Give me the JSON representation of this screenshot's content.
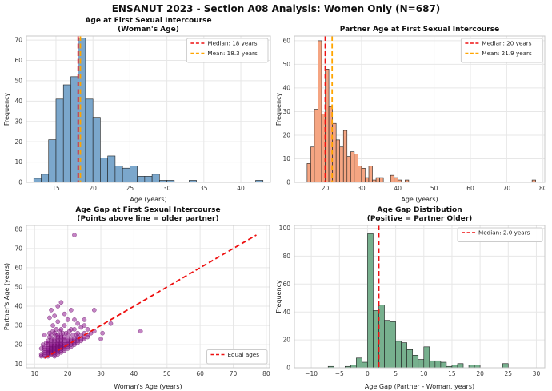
{
  "figure": {
    "title": "ENSANUT 2023 - Section A08 Analysis: Women Only (N=687)"
  },
  "colors": {
    "median_line": "#ee1111",
    "mean_line": "#ffa500",
    "hist_woman_fill": "#7ba7cc",
    "hist_partner_fill": "#f5a582",
    "hist_gap_fill": "#77b08e",
    "scatter_fill": "rgba(145,30,145,0.55)",
    "scatter_edge": "rgba(90,0,90,0.65)",
    "grid": "#e7e7e7",
    "spine": "#c8c8c8",
    "bar_edge": "#1f1f1f"
  },
  "chart_data": [
    {
      "id": "woman-age-histogram",
      "type": "bar",
      "title_lines": [
        "Age at First Sexual Intercourse",
        "(Woman's Age)"
      ],
      "xlabel": "Age (years)",
      "ylabel": "Frequency",
      "bar_color": "#7ba7cc",
      "bar_edge": "#1f1f1f",
      "bin_width": 1,
      "bins": [
        [
          12,
          2
        ],
        [
          13,
          4
        ],
        [
          14,
          21
        ],
        [
          15,
          41
        ],
        [
          16,
          48
        ],
        [
          17,
          52
        ],
        [
          18,
          71
        ],
        [
          19,
          41
        ],
        [
          20,
          32
        ],
        [
          21,
          12
        ],
        [
          22,
          13
        ],
        [
          23,
          8
        ],
        [
          24,
          7
        ],
        [
          25,
          8
        ],
        [
          26,
          3
        ],
        [
          27,
          3
        ],
        [
          28,
          4
        ],
        [
          29,
          1
        ],
        [
          30,
          1
        ],
        [
          33,
          1
        ],
        [
          42,
          1
        ]
      ],
      "xlim": [
        11,
        44
      ],
      "ylim": [
        0,
        72
      ],
      "xticks": [
        15,
        20,
        25,
        30,
        35,
        40
      ],
      "yticks": [
        0,
        10,
        20,
        30,
        40,
        50,
        60,
        70
      ],
      "grid": true,
      "vlines": [
        {
          "x": 18,
          "color": "#ee1111",
          "label": "Median: 18 years"
        },
        {
          "x": 18.3,
          "color": "#ffa500",
          "label": "Mean: 18.3 years"
        }
      ],
      "legend_pos": "top-right"
    },
    {
      "id": "partner-age-histogram",
      "type": "bar",
      "title_lines": [
        "Partner Age at First Sexual Intercourse"
      ],
      "xlabel": "Age (years)",
      "ylabel": "Frequency",
      "bar_color": "#f5a582",
      "bar_edge": "#1f1f1f",
      "bin_width": 1,
      "bins": [
        [
          15,
          8
        ],
        [
          16,
          15
        ],
        [
          17,
          31
        ],
        [
          18,
          60
        ],
        [
          19,
          29
        ],
        [
          20,
          48
        ],
        [
          21,
          32
        ],
        [
          22,
          25
        ],
        [
          23,
          18
        ],
        [
          24,
          15
        ],
        [
          25,
          22
        ],
        [
          26,
          11
        ],
        [
          27,
          13
        ],
        [
          28,
          12
        ],
        [
          29,
          7
        ],
        [
          30,
          6
        ],
        [
          31,
          2
        ],
        [
          32,
          7
        ],
        [
          33,
          1
        ],
        [
          34,
          2
        ],
        [
          35,
          2
        ],
        [
          38,
          3
        ],
        [
          39,
          2
        ],
        [
          40,
          1
        ],
        [
          42,
          1
        ],
        [
          77,
          1
        ]
      ],
      "xlim": [
        11.5,
        80.5
      ],
      "ylim": [
        0,
        62
      ],
      "xticks": [
        20,
        30,
        40,
        50,
        60,
        70,
        80
      ],
      "yticks": [
        0,
        10,
        20,
        30,
        40,
        50,
        60
      ],
      "grid": true,
      "vlines": [
        {
          "x": 20,
          "color": "#ee1111",
          "label": "Median: 20 years"
        },
        {
          "x": 21.9,
          "color": "#ffa500",
          "label": "Mean: 21.9 years"
        }
      ],
      "legend_pos": "top-right"
    },
    {
      "id": "age-gap-scatter",
      "type": "scatter",
      "title_lines": [
        "Age Gap at First Sexual Intercourse",
        "(Points above line = older partner)"
      ],
      "xlabel": "Woman's Age (years)",
      "ylabel": "Partner's Age (years)",
      "point_color": "rgba(145,30,145,0.55)",
      "point_edge": "rgba(90,0,90,0.65)",
      "xlim": [
        7.5,
        81
      ],
      "ylim": [
        8,
        82
      ],
      "xticks": [
        10,
        20,
        30,
        40,
        50,
        60,
        70,
        80
      ],
      "yticks": [
        10,
        20,
        30,
        40,
        50,
        60,
        70,
        80
      ],
      "grid": true,
      "ref_line": {
        "x1": 13,
        "y1": 13,
        "x2": 77,
        "y2": 77,
        "color": "#ee1111",
        "label": "Equal ages"
      },
      "legend_pos": "bottom-right",
      "points": [
        [
          12,
          14
        ],
        [
          12,
          15
        ],
        [
          12,
          18
        ],
        [
          12.5,
          20
        ],
        [
          13,
          14
        ],
        [
          13,
          15
        ],
        [
          13,
          16
        ],
        [
          13,
          17
        ],
        [
          13,
          18
        ],
        [
          13,
          19
        ],
        [
          13.5,
          21
        ],
        [
          13,
          25
        ],
        [
          14,
          14
        ],
        [
          14,
          15
        ],
        [
          14,
          15.5
        ],
        [
          14,
          16
        ],
        [
          14,
          16.5
        ],
        [
          14,
          17
        ],
        [
          14,
          17.5
        ],
        [
          14,
          18
        ],
        [
          14,
          19
        ],
        [
          14,
          20
        ],
        [
          14,
          21
        ],
        [
          14,
          22
        ],
        [
          14.5,
          24
        ],
        [
          14.5,
          26
        ],
        [
          14.5,
          34
        ],
        [
          15,
          15
        ],
        [
          15,
          15.5
        ],
        [
          15,
          16
        ],
        [
          15,
          16.5
        ],
        [
          15,
          17
        ],
        [
          15,
          17.5
        ],
        [
          15,
          18
        ],
        [
          15,
          18.5
        ],
        [
          15,
          19
        ],
        [
          15,
          19.5
        ],
        [
          15,
          20
        ],
        [
          15,
          21
        ],
        [
          15,
          22
        ],
        [
          15,
          23
        ],
        [
          15,
          25
        ],
        [
          15.5,
          27
        ],
        [
          15.5,
          30
        ],
        [
          15,
          38
        ],
        [
          16,
          14
        ],
        [
          16,
          15
        ],
        [
          16,
          16
        ],
        [
          16,
          16.5
        ],
        [
          16,
          17
        ],
        [
          16,
          17.5
        ],
        [
          16,
          18
        ],
        [
          16,
          18.5
        ],
        [
          16,
          19
        ],
        [
          16,
          19.5
        ],
        [
          16,
          20
        ],
        [
          16,
          21
        ],
        [
          16,
          22
        ],
        [
          16,
          23
        ],
        [
          16.5,
          25
        ],
        [
          16,
          26
        ],
        [
          16.5,
          28
        ],
        [
          16,
          35
        ],
        [
          17,
          15
        ],
        [
          17,
          16
        ],
        [
          17,
          17
        ],
        [
          17,
          17.5
        ],
        [
          17,
          18
        ],
        [
          17,
          18.5
        ],
        [
          17,
          19
        ],
        [
          17,
          19.5
        ],
        [
          17,
          20
        ],
        [
          17,
          20.5
        ],
        [
          17,
          21
        ],
        [
          17,
          22
        ],
        [
          17,
          23
        ],
        [
          17,
          24
        ],
        [
          17,
          25
        ],
        [
          17.5,
          27
        ],
        [
          17,
          32
        ],
        [
          17,
          40
        ],
        [
          18,
          16
        ],
        [
          18,
          17
        ],
        [
          18,
          18
        ],
        [
          18,
          18.5
        ],
        [
          18,
          19
        ],
        [
          18,
          19.5
        ],
        [
          18,
          20
        ],
        [
          18,
          20.5
        ],
        [
          18,
          21
        ],
        [
          18,
          22
        ],
        [
          18,
          23
        ],
        [
          18,
          24
        ],
        [
          18,
          25
        ],
        [
          18.5,
          26
        ],
        [
          18,
          28
        ],
        [
          18,
          42
        ],
        [
          19,
          17
        ],
        [
          19,
          18
        ],
        [
          19,
          19
        ],
        [
          19,
          19.5
        ],
        [
          19,
          20
        ],
        [
          19,
          21
        ],
        [
          19,
          22
        ],
        [
          19,
          23
        ],
        [
          19,
          24
        ],
        [
          19.5,
          26
        ],
        [
          19,
          30
        ],
        [
          19,
          36
        ],
        [
          20,
          18
        ],
        [
          20,
          19
        ],
        [
          20,
          20
        ],
        [
          20,
          20.5
        ],
        [
          20,
          21
        ],
        [
          20,
          22
        ],
        [
          20,
          23
        ],
        [
          20,
          25
        ],
        [
          20.5,
          27
        ],
        [
          20,
          33
        ],
        [
          21,
          19
        ],
        [
          21,
          20
        ],
        [
          21,
          21
        ],
        [
          21,
          22
        ],
        [
          21,
          23
        ],
        [
          21.5,
          25
        ],
        [
          21,
          28
        ],
        [
          21,
          38
        ],
        [
          22,
          20
        ],
        [
          22,
          21
        ],
        [
          22,
          22
        ],
        [
          22,
          23
        ],
        [
          22.5,
          25
        ],
        [
          22,
          28
        ],
        [
          22,
          33
        ],
        [
          22,
          77
        ],
        [
          23,
          21
        ],
        [
          23,
          22
        ],
        [
          23,
          23
        ],
        [
          23,
          24
        ],
        [
          23,
          26
        ],
        [
          23,
          31
        ],
        [
          24,
          22
        ],
        [
          24,
          23
        ],
        [
          24,
          25
        ],
        [
          24,
          29
        ],
        [
          25,
          23
        ],
        [
          25,
          24
        ],
        [
          25,
          26
        ],
        [
          25,
          30
        ],
        [
          25,
          33
        ],
        [
          26,
          24
        ],
        [
          26,
          25
        ],
        [
          26,
          28
        ],
        [
          27,
          26
        ],
        [
          28,
          27
        ],
        [
          28,
          38
        ],
        [
          30,
          23
        ],
        [
          30.5,
          26
        ],
        [
          33,
          31
        ],
        [
          42,
          27
        ]
      ]
    },
    {
      "id": "age-gap-histogram",
      "type": "bar",
      "title_lines": [
        "Age Gap Distribution",
        "(Positive = Partner Older)"
      ],
      "xlabel": "Age Gap (Partner - Woman, years)",
      "ylabel": "Frequency",
      "bar_color": "#77b08e",
      "bar_edge": "#1f1f1f",
      "bin_width": 1,
      "bins": [
        [
          -7,
          1
        ],
        [
          -4,
          1
        ],
        [
          -3,
          2
        ],
        [
          -2,
          7
        ],
        [
          -1,
          4
        ],
        [
          0,
          96
        ],
        [
          1,
          41
        ],
        [
          2,
          45
        ],
        [
          3,
          34
        ],
        [
          4,
          33
        ],
        [
          5,
          19
        ],
        [
          6,
          18
        ],
        [
          7,
          13
        ],
        [
          8,
          9
        ],
        [
          9,
          6
        ],
        [
          10,
          15
        ],
        [
          11,
          5
        ],
        [
          12,
          5
        ],
        [
          13,
          4
        ],
        [
          14,
          1
        ],
        [
          15,
          2
        ],
        [
          16,
          3
        ],
        [
          18,
          2
        ],
        [
          19,
          2
        ],
        [
          24,
          3
        ]
      ],
      "xlim": [
        -13,
        31.5
      ],
      "ylim": [
        0,
        102
      ],
      "xticks": [
        -10,
        -5,
        0,
        5,
        10,
        15,
        20,
        25,
        30
      ],
      "yticks": [
        0,
        20,
        40,
        60,
        80,
        100
      ],
      "grid": true,
      "vlines": [
        {
          "x": 2.0,
          "color": "#ee1111",
          "label": "Median: 2.0 years"
        }
      ],
      "legend_pos": "top-right"
    }
  ]
}
